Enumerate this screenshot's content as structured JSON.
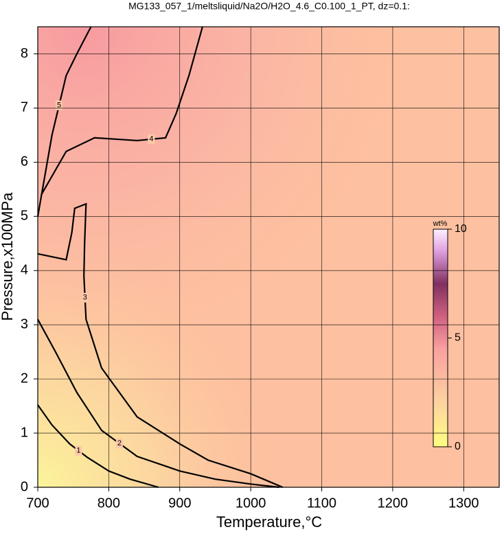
{
  "chart_data": {
    "type": "contour",
    "title": "MG133_057_1/meltsliquid/Na2O/H2O_4.6_C0.100_1_PT, dz=0.1:",
    "xlabel": "Temperature,°C",
    "ylabel": "Pressure,x100MPa",
    "xlim": [
      700,
      1350
    ],
    "xticks": [
      700,
      800,
      900,
      1000,
      1100,
      1200,
      1300
    ],
    "ylim": [
      0,
      8.5
    ],
    "yticks": [
      0,
      1,
      2,
      3,
      4,
      5,
      6,
      7,
      8
    ],
    "grid": true,
    "contours": [
      {
        "level": 1,
        "x": [
          700,
          720,
          745,
          770,
          800,
          830,
          870
        ],
        "y": [
          1.52,
          1.15,
          0.8,
          0.55,
          0.3,
          0.15,
          0
        ]
      },
      {
        "level": 2,
        "x": [
          700,
          725,
          755,
          790,
          840,
          900,
          950,
          1000,
          1040
        ],
        "y": [
          3.1,
          2.5,
          1.75,
          1.05,
          0.57,
          0.3,
          0.15,
          0.06,
          0
        ]
      },
      {
        "level": 3,
        "x": [
          700,
          740,
          748,
          752,
          768,
          766,
          765,
          768,
          790,
          840,
          900,
          940,
          1000,
          1045
        ],
        "y": [
          4.31,
          4.2,
          4.7,
          5.15,
          5.23,
          4.5,
          3.9,
          3.1,
          2.2,
          1.3,
          0.8,
          0.5,
          0.25,
          0
        ]
      },
      {
        "level": 4,
        "x": [
          705,
          740,
          780,
          840,
          880,
          895,
          913,
          932
        ],
        "y": [
          5.4,
          6.2,
          6.45,
          6.4,
          6.45,
          6.9,
          7.6,
          8.5
        ]
      },
      {
        "level": 5,
        "x": [
          700,
          720,
          740,
          755,
          775
        ],
        "y": [
          5.0,
          6.5,
          7.6,
          8.0,
          8.5
        ]
      }
    ],
    "colorbar": {
      "label": "wt%",
      "lim": [
        0,
        10
      ],
      "ticks": [
        0,
        5,
        10
      ]
    }
  }
}
